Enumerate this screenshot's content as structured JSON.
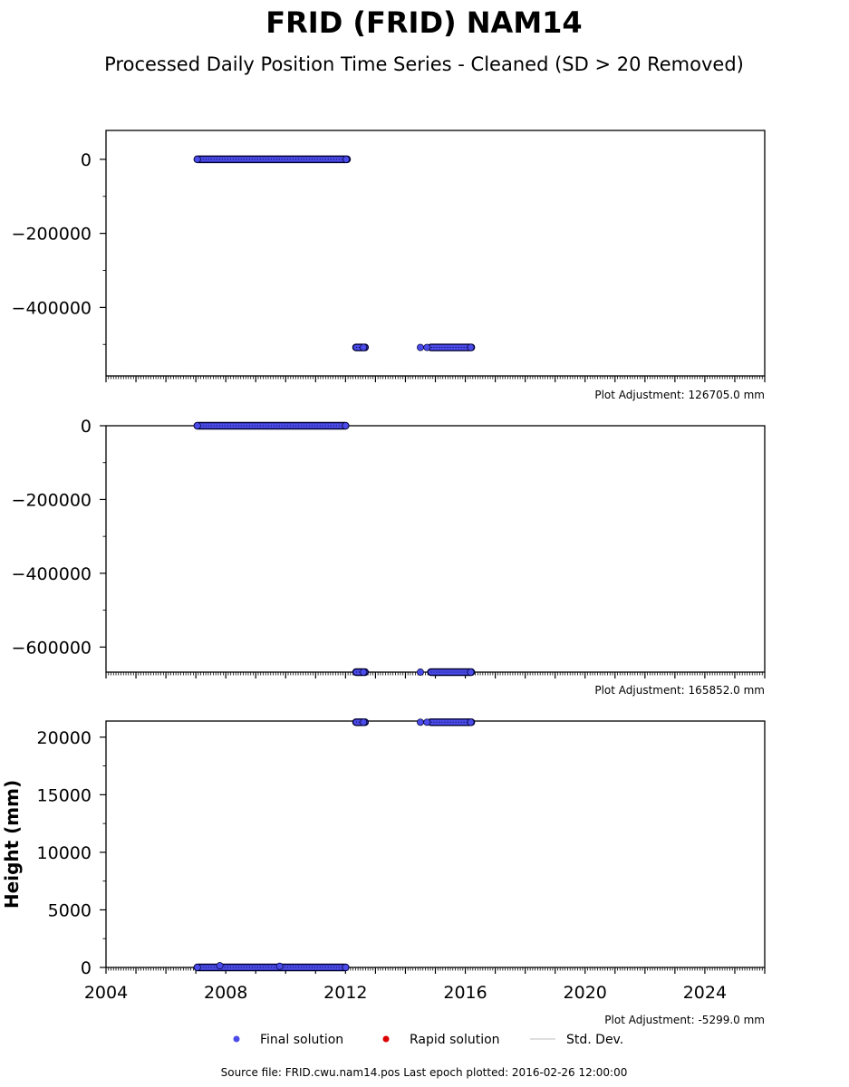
{
  "header": {
    "title": "FRID (FRID) NAM14",
    "subtitle": "Processed Daily Position Time Series - Cleaned (SD > 20 Removed)"
  },
  "colors": {
    "final": "#4b4bea",
    "rapid": "#dd0000",
    "stddev": "#cccccc",
    "edge": "#000033"
  },
  "legend": {
    "final": "Final solution",
    "rapid": "Rapid solution",
    "stddev": "Std. Dev."
  },
  "footer": {
    "text": "Source file: FRID.cwu.nam14.pos  Last epoch plotted: 2016-02-26 12:00:00"
  },
  "chart_data": [
    {
      "type": "scatter",
      "panel": "north",
      "ylabel": "",
      "xlim": [
        2004.0,
        2026.0
      ],
      "ylim": [
        -585000,
        78000
      ],
      "yticks": [
        0,
        -200000,
        -400000
      ],
      "ytick_labels": [
        "0",
        "−200000",
        "−400000"
      ],
      "adjustment": "Plot Adjustment: 126705.0 mm",
      "segments": [
        {
          "x_start": 2007.05,
          "x_end": 2012.05,
          "y": 0
        },
        {
          "x_start": 2012.35,
          "x_end": 2012.65,
          "y": -508000
        },
        {
          "x_start": 2014.85,
          "x_end": 2016.2,
          "y": -508000
        }
      ],
      "points": [
        {
          "x": 2007.05,
          "y": 0
        },
        {
          "x": 2012.02,
          "y": 0
        },
        {
          "x": 2012.6,
          "y": -508000
        },
        {
          "x": 2014.5,
          "y": -508000
        },
        {
          "x": 2014.72,
          "y": -508000
        },
        {
          "x": 2016.18,
          "y": -508000
        }
      ]
    },
    {
      "type": "scatter",
      "panel": "east",
      "ylabel": "",
      "xlim": [
        2004.0,
        2026.0
      ],
      "ylim": [
        -668000,
        0
      ],
      "yticks": [
        0,
        -200000,
        -400000,
        -600000
      ],
      "ytick_labels": [
        "0",
        "−200000",
        "−400000",
        "−600000"
      ],
      "adjustment": "Plot Adjustment: 165852.0 mm",
      "segments": [
        {
          "x_start": 2007.05,
          "x_end": 2012.0,
          "y": 0
        },
        {
          "x_start": 2012.35,
          "x_end": 2012.65,
          "y": -668000
        },
        {
          "x_start": 2014.85,
          "x_end": 2016.2,
          "y": -668000
        }
      ],
      "points": [
        {
          "x": 2007.05,
          "y": 0
        },
        {
          "x": 2012.0,
          "y": 0
        },
        {
          "x": 2012.6,
          "y": -668000
        },
        {
          "x": 2014.5,
          "y": -668000
        },
        {
          "x": 2016.18,
          "y": -668000
        }
      ]
    },
    {
      "type": "scatter",
      "panel": "up",
      "ylabel": "Height (mm)",
      "xlim": [
        2004.0,
        2026.0
      ],
      "ylim": [
        0,
        21400
      ],
      "yticks": [
        0,
        5000,
        10000,
        15000,
        20000
      ],
      "ytick_labels": [
        "0",
        "5000",
        "10000",
        "15000",
        "20000"
      ],
      "xticks": [
        2004,
        2008,
        2012,
        2016,
        2020,
        2024
      ],
      "xtick_labels": [
        "2004",
        "2008",
        "2012",
        "2016",
        "2020",
        "2024"
      ],
      "adjustment": "Plot Adjustment: -5299.0 mm",
      "segments": [
        {
          "x_start": 2007.05,
          "x_end": 2012.0,
          "y": 0
        },
        {
          "x_start": 2012.35,
          "x_end": 2012.65,
          "y": 21300
        },
        {
          "x_start": 2014.85,
          "x_end": 2016.2,
          "y": 21300
        }
      ],
      "points": [
        {
          "x": 2007.05,
          "y": 0
        },
        {
          "x": 2007.8,
          "y": 150
        },
        {
          "x": 2009.8,
          "y": 100
        },
        {
          "x": 2012.0,
          "y": 0
        },
        {
          "x": 2012.6,
          "y": 21300
        },
        {
          "x": 2014.5,
          "y": 21300
        },
        {
          "x": 2014.72,
          "y": 21300
        },
        {
          "x": 2016.18,
          "y": 21300
        }
      ]
    }
  ]
}
